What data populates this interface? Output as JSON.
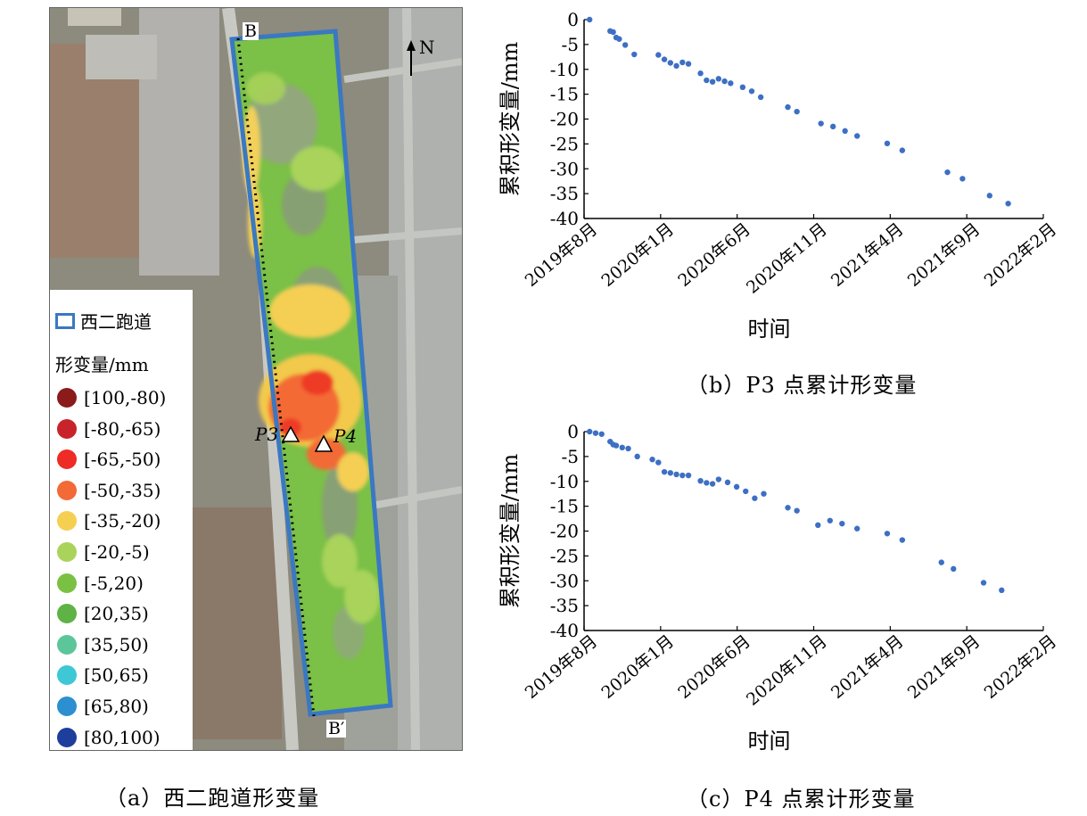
{
  "map": {
    "legend": {
      "runway_label": "西二跑道",
      "unit_label": "形变量/mm",
      "items": [
        {
          "label": "[100,-80)",
          "color": "#8b1a1a"
        },
        {
          "label": "[-80,-65)",
          "color": "#c8232a"
        },
        {
          "label": "[-65,-50)",
          "color": "#ee2b24"
        },
        {
          "label": "[-50,-35)",
          "color": "#f26a36"
        },
        {
          "label": "[-35,-20)",
          "color": "#f4cf52"
        },
        {
          "label": "[-20,-5)",
          "color": "#a9d35a"
        },
        {
          "label": "[-5,20)",
          "color": "#7ac143"
        },
        {
          "label": "[20,35)",
          "color": "#5fb246"
        },
        {
          "label": "[35,50)",
          "color": "#5cc69a"
        },
        {
          "label": "[50,65)",
          "color": "#3ec7d4"
        },
        {
          "label": "[65,80)",
          "color": "#2b8fd0"
        },
        {
          "label": "[80,100)",
          "color": "#1e3e9c"
        }
      ]
    },
    "profile_start": "B",
    "profile_end": "B′",
    "north_label": "N",
    "point_p3": "P3",
    "point_p4": "P4",
    "runway_color": "#3a78c2",
    "caption": "（a）西二跑道形变量"
  },
  "chart_data": [
    {
      "type": "scatter",
      "title": "",
      "ylabel": "累积形变量/mm",
      "xlabel": "时间",
      "xticks": [
        "2019年8月",
        "2020年1月",
        "2020年6月",
        "2020年11月",
        "2021年4月",
        "2021年9月",
        "2022年2月"
      ],
      "xlim": [
        "2019-08-01",
        "2022-02-01"
      ],
      "ylim": [
        -40,
        0
      ],
      "yticks": [
        0,
        -5,
        -10,
        -15,
        -20,
        -25,
        -30,
        -35,
        -40
      ],
      "marker_color": "#3d6fc4",
      "points": [
        [
          "2019-08-12",
          0
        ],
        [
          "2019-09-22",
          -2.3
        ],
        [
          "2019-09-28",
          -2.5
        ],
        [
          "2019-10-04",
          -3.6
        ],
        [
          "2019-10-10",
          -3.9
        ],
        [
          "2019-10-22",
          -5.1
        ],
        [
          "2019-11-09",
          -7.0
        ],
        [
          "2019-12-27",
          -7.1
        ],
        [
          "2020-01-08",
          -8.0
        ],
        [
          "2020-01-20",
          -8.7
        ],
        [
          "2020-02-01",
          -9.3
        ],
        [
          "2020-02-13",
          -8.6
        ],
        [
          "2020-02-25",
          -8.9
        ],
        [
          "2020-03-20",
          -10.8
        ],
        [
          "2020-04-01",
          -12.2
        ],
        [
          "2020-04-13",
          -12.5
        ],
        [
          "2020-04-25",
          -11.9
        ],
        [
          "2020-05-07",
          -12.4
        ],
        [
          "2020-05-19",
          -12.8
        ],
        [
          "2020-06-12",
          -13.6
        ],
        [
          "2020-06-30",
          -14.4
        ],
        [
          "2020-07-18",
          -15.6
        ],
        [
          "2020-09-10",
          -17.6
        ],
        [
          "2020-09-28",
          -18.5
        ],
        [
          "2020-11-15",
          -20.9
        ],
        [
          "2020-12-09",
          -21.5
        ],
        [
          "2021-01-02",
          -22.4
        ],
        [
          "2021-01-26",
          -23.4
        ],
        [
          "2021-03-27",
          -24.9
        ],
        [
          "2021-04-26",
          -26.3
        ],
        [
          "2021-07-25",
          -30.7
        ],
        [
          "2021-08-24",
          -32.0
        ],
        [
          "2021-10-17",
          -35.4
        ],
        [
          "2021-11-23",
          -37.0
        ]
      ],
      "caption": "（b）P3 点累计形变量"
    },
    {
      "type": "scatter",
      "title": "",
      "ylabel": "累积形变量/mm",
      "xlabel": "时间",
      "xticks": [
        "2019年8月",
        "2020年1月",
        "2020年6月",
        "2020年11月",
        "2021年4月",
        "2021年9月",
        "2022年2月"
      ],
      "xlim": [
        "2019-08-01",
        "2022-02-01"
      ],
      "ylim": [
        -40,
        0
      ],
      "yticks": [
        0,
        -5,
        -10,
        -15,
        -20,
        -25,
        -30,
        -35,
        -40
      ],
      "marker_color": "#3d6fc4",
      "points": [
        [
          "2019-08-12",
          0
        ],
        [
          "2019-08-24",
          -0.3
        ],
        [
          "2019-09-05",
          -0.5
        ],
        [
          "2019-09-22",
          -2.0
        ],
        [
          "2019-09-28",
          -2.6
        ],
        [
          "2019-10-04",
          -2.8
        ],
        [
          "2019-10-16",
          -3.2
        ],
        [
          "2019-10-28",
          -3.4
        ],
        [
          "2019-11-15",
          -5.0
        ],
        [
          "2019-12-15",
          -5.6
        ],
        [
          "2019-12-27",
          -6.2
        ],
        [
          "2020-01-08",
          -8.1
        ],
        [
          "2020-01-20",
          -8.3
        ],
        [
          "2020-02-01",
          -8.6
        ],
        [
          "2020-02-13",
          -8.8
        ],
        [
          "2020-02-25",
          -8.8
        ],
        [
          "2020-03-20",
          -9.9
        ],
        [
          "2020-04-01",
          -10.3
        ],
        [
          "2020-04-13",
          -10.5
        ],
        [
          "2020-04-25",
          -9.6
        ],
        [
          "2020-05-13",
          -10.2
        ],
        [
          "2020-05-31",
          -11.1
        ],
        [
          "2020-06-18",
          -12.0
        ],
        [
          "2020-07-06",
          -13.4
        ],
        [
          "2020-07-24",
          -12.5
        ],
        [
          "2020-09-10",
          -15.3
        ],
        [
          "2020-09-28",
          -15.9
        ],
        [
          "2020-11-09",
          -18.8
        ],
        [
          "2020-12-03",
          -17.9
        ],
        [
          "2020-12-27",
          -18.5
        ],
        [
          "2021-01-26",
          -19.5
        ],
        [
          "2021-03-27",
          -20.5
        ],
        [
          "2021-04-26",
          -21.8
        ],
        [
          "2021-07-13",
          -26.3
        ],
        [
          "2021-08-06",
          -27.6
        ],
        [
          "2021-10-05",
          -30.4
        ],
        [
          "2021-11-10",
          -31.9
        ]
      ],
      "caption": "（c）P4 点累计形变量"
    }
  ]
}
